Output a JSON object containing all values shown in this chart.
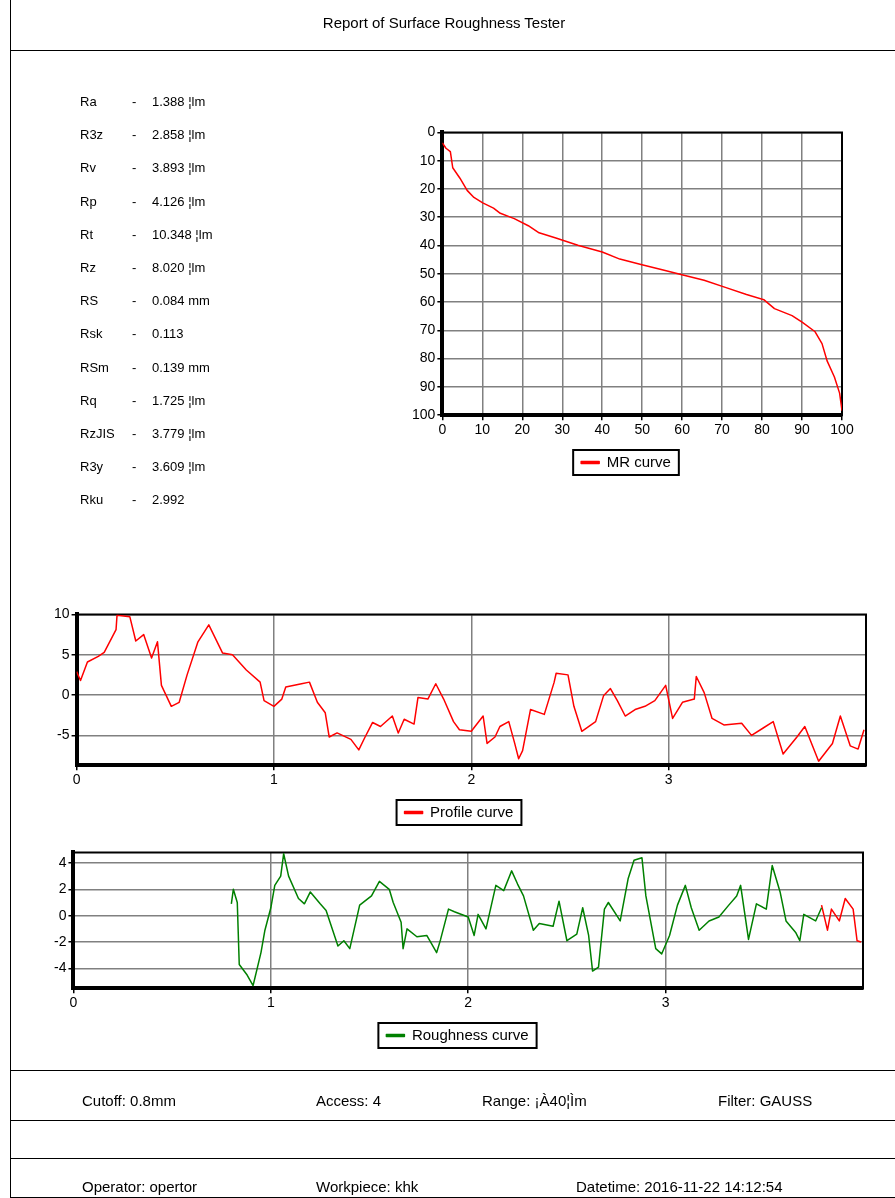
{
  "chart_data": [
    {
      "type": "other",
      "title": "Report of Surface Roughness Tester",
      "annotations": [
        "Ra",
        "-",
        "1.388 ¦lm",
        "R3z",
        "-",
        "2.858 ¦lm",
        "Rv",
        "-",
        "3.893 ¦lm",
        "Rp",
        "-",
        "4.126 ¦lm",
        "Rt",
        "-",
        "10.348 ¦lm",
        "Rz",
        "-",
        "8.020 ¦lm",
        "RS",
        "-",
        "0.084 mm",
        "Rsk",
        "-",
        "0.113",
        "RSm",
        "-",
        "0.139 mm",
        "Rq",
        "-",
        "1.725 ¦lm",
        "RzJIS",
        "-",
        "3.779 ¦lm",
        "R3y",
        "-",
        "3.609 ¦lm",
        "Rku",
        "-",
        "2.992"
      ]
    },
    {
      "type": "line",
      "xlim": [
        0,
        100
      ],
      "xticks": [
        0,
        10,
        20,
        30,
        40,
        50,
        60,
        70,
        80,
        90,
        100
      ],
      "ylim": [
        100,
        0
      ],
      "yticks": [
        0,
        10,
        20,
        30,
        40,
        50,
        60,
        70,
        80,
        90,
        100
      ],
      "grid": true,
      "legend": "bottom",
      "marker": "none",
      "line_style": "solid",
      "series": [
        {
          "name": "MR curve",
          "color": "#ff0000",
          "x": [
            0,
            0.9,
            2,
            2.6,
            4.4,
            6.2,
            7.9,
            10.1,
            12.8,
            14.5,
            18,
            21.5,
            24.2,
            28.6,
            33.9,
            40,
            44.4,
            49.7,
            55,
            60.2,
            65.5,
            70.8,
            76.1,
            80.5,
            83.1,
            87.5,
            90.1,
            93.2,
            95,
            96.3,
            98.1,
            99.4,
            100
          ],
          "values": [
            3.7,
            5.6,
            6.8,
            12.5,
            16.2,
            20.5,
            23,
            24.9,
            26.8,
            28.6,
            30.5,
            33,
            35.5,
            37.4,
            39.9,
            42.3,
            44.8,
            46.7,
            48.6,
            50.4,
            52.3,
            54.8,
            57.3,
            59.2,
            62.3,
            64.8,
            67.2,
            70.4,
            74.7,
            80.9,
            86.5,
            92.2,
            98.4
          ]
        }
      ]
    },
    {
      "type": "line",
      "xlim": [
        0,
        4
      ],
      "xticks": [
        0,
        1,
        2,
        3
      ],
      "ylim": [
        -8.7,
        10
      ],
      "yticks": [
        -5,
        0,
        5,
        10
      ],
      "grid": true,
      "legend": "bottom",
      "marker": "none",
      "line_style": "solid",
      "series": [
        {
          "name": "Profile curve",
          "color": "#ff0000",
          "x": [
            0,
            0.02,
            0.055,
            0.11,
            0.14,
            0.2,
            0.205,
            0.27,
            0.3,
            0.34,
            0.38,
            0.41,
            0.43,
            0.48,
            0.52,
            0.56,
            0.615,
            0.67,
            0.74,
            0.79,
            0.86,
            0.93,
            0.95,
            1,
            1.04,
            1.06,
            1.14,
            1.18,
            1.22,
            1.26,
            1.28,
            1.32,
            1.39,
            1.43,
            1.46,
            1.5,
            1.54,
            1.6,
            1.63,
            1.66,
            1.71,
            1.73,
            1.78,
            1.82,
            1.86,
            1.91,
            1.94,
            2,
            2.06,
            2.08,
            2.12,
            2.145,
            2.19,
            2.22,
            2.24,
            2.26,
            2.3,
            2.37,
            2.42,
            2.43,
            2.49,
            2.52,
            2.56,
            2.63,
            2.67,
            2.705,
            2.74,
            2.78,
            2.83,
            2.88,
            2.93,
            2.985,
            3.02,
            3.07,
            3.13,
            3.14,
            3.18,
            3.22,
            3.28,
            3.37,
            3.42,
            3.53,
            3.58,
            3.65,
            3.69,
            3.76,
            3.83,
            3.87,
            3.92,
            3.96,
            3.99
          ],
          "values": [
            2.9,
            1.8,
            4.1,
            4.8,
            5.3,
            8.1,
            9.9,
            9.7,
            6.7,
            7.5,
            4.6,
            6.6,
            1.2,
            -1.4,
            -0.9,
            2.5,
            6.6,
            8.7,
            5.2,
            5,
            3.1,
            1.6,
            -0.7,
            -1.4,
            -0.5,
            1,
            1.4,
            1.6,
            -0.9,
            -2.2,
            -5.2,
            -4.7,
            -5.5,
            -6.8,
            -5.3,
            -3.4,
            -3.9,
            -2.6,
            -4.7,
            -3,
            -3.6,
            -0.3,
            -0.5,
            1.4,
            -0.5,
            -3.3,
            -4.3,
            -4.5,
            -2.6,
            -6,
            -5.2,
            -3.9,
            -3.3,
            -6,
            -7.9,
            -6.9,
            -1.8,
            -2.4,
            1.6,
            2.7,
            2.5,
            -1.4,
            -4.5,
            -3.3,
            -0.1,
            0.8,
            -0.7,
            -2.6,
            -1.8,
            -1.4,
            -0.7,
            1.2,
            -2.9,
            -0.9,
            -0.5,
            2.3,
            0.3,
            -2.9,
            -3.7,
            -3.5,
            -5,
            -3.3,
            -7.3,
            -5.2,
            -3.9,
            -8.2,
            -6,
            -2.6,
            -6.3,
            -6.7,
            -4.3
          ]
        }
      ]
    },
    {
      "type": "line",
      "xlim": [
        0,
        4
      ],
      "xticks": [
        0,
        1,
        2,
        3
      ],
      "ylim": [
        -5.5,
        4.8
      ],
      "yticks": [
        -4,
        -2,
        0,
        2,
        4
      ],
      "grid": true,
      "legend": "bottom",
      "marker": "none",
      "line_style": "solid",
      "series": [
        {
          "name": "Roughness curve",
          "color": "#008000",
          "x": [
            0.8,
            0.81,
            0.83,
            0.84,
            0.88,
            0.91,
            0.95,
            0.97,
            1,
            1.02,
            1.05,
            1.065,
            1.09,
            1.14,
            1.17,
            1.2,
            1.25,
            1.28,
            1.34,
            1.37,
            1.4,
            1.45,
            1.51,
            1.55,
            1.6,
            1.62,
            1.66,
            1.67,
            1.69,
            1.74,
            1.79,
            1.84,
            1.86,
            1.9,
            1.93,
            2,
            2.03,
            2.05,
            2.09,
            2.14,
            2.18,
            2.22,
            2.25,
            2.28,
            2.33,
            2.36,
            2.43,
            2.46,
            2.5,
            2.55,
            2.58,
            2.61,
            2.63,
            2.66,
            2.69,
            2.71,
            2.77,
            2.81,
            2.84,
            2.88,
            2.9,
            2.95,
            2.98,
            3.02,
            3.06,
            3.1,
            3.13,
            3.17,
            3.22,
            3.27,
            3.32,
            3.36,
            3.38,
            3.42,
            3.46,
            3.51,
            3.54,
            3.58,
            3.61,
            3.66,
            3.68,
            3.7,
            3.76,
            3.79
          ],
          "values": [
            0.9,
            2,
            1,
            -3.7,
            -4.5,
            -5.3,
            -2.8,
            -1.1,
            0.6,
            2.3,
            3,
            4.7,
            3,
            1.3,
            0.9,
            1.8,
            0.9,
            0.4,
            -2.3,
            -1.9,
            -2.5,
            0.8,
            1.5,
            2.6,
            2,
            1,
            -0.5,
            -2.5,
            -1,
            -1.6,
            -1.5,
            -2.8,
            -1.8,
            0.5,
            0.3,
            -0.1,
            -1.5,
            0.1,
            -1,
            2.3,
            1.9,
            3.4,
            2.4,
            1.5,
            -1.1,
            -0.6,
            -0.8,
            1.1,
            -1.9,
            -1.4,
            0.6,
            -1.5,
            -4.2,
            -3.9,
            0.5,
            1,
            -0.4,
            2.8,
            4.2,
            4.4,
            1.5,
            -2.5,
            -2.9,
            -1.5,
            0.8,
            2.3,
            0.6,
            -1.1,
            -0.4,
            -0.1,
            0.8,
            1.5,
            2.3,
            -1.8,
            0.9,
            0.5,
            3.8,
            1.8,
            -0.4,
            -1.3,
            -1.9,
            0.1,
            -0.4,
            0.6
          ]
        },
        {
          "color": "#ff0000",
          "x": [
            3.79,
            3.82,
            3.84,
            3.88,
            3.91,
            3.95,
            3.97,
            3.99
          ],
          "values": [
            0.8,
            -1.1,
            0.5,
            -0.4,
            1.3,
            0.5,
            -1.9,
            -2
          ]
        }
      ]
    },
    {
      "type": "other",
      "annotations": [
        "Cutoff: 0.8mm",
        "Access: 4",
        "Range: ¡À40¦Ìm",
        "Filter: GAUSS",
        "Operator: opertor",
        "Workpiece: khk",
        "Datetime: 2016-11-22 14:12:54"
      ]
    }
  ]
}
